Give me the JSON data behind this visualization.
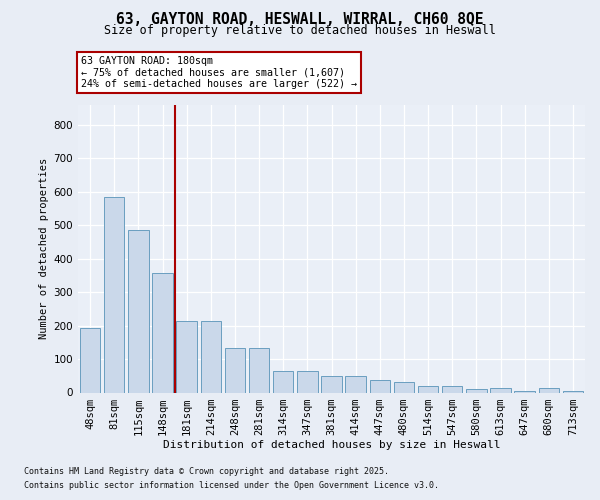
{
  "title_line1": "63, GAYTON ROAD, HESWALL, WIRRAL, CH60 8QE",
  "title_line2": "Size of property relative to detached houses in Heswall",
  "xlabel": "Distribution of detached houses by size in Heswall",
  "ylabel": "Number of detached properties",
  "categories": [
    "48sqm",
    "81sqm",
    "115sqm",
    "148sqm",
    "181sqm",
    "214sqm",
    "248sqm",
    "281sqm",
    "314sqm",
    "347sqm",
    "381sqm",
    "414sqm",
    "447sqm",
    "480sqm",
    "514sqm",
    "547sqm",
    "580sqm",
    "613sqm",
    "647sqm",
    "680sqm",
    "713sqm"
  ],
  "values": [
    193,
    585,
    487,
    358,
    215,
    215,
    133,
    133,
    63,
    63,
    50,
    50,
    38,
    30,
    20,
    20,
    10,
    13,
    5,
    13,
    5
  ],
  "bar_color": "#cad8ea",
  "bar_edge_color": "#6a9ec0",
  "vline_color": "#aa0000",
  "annotation_text": "63 GAYTON ROAD: 180sqm\n← 75% of detached houses are smaller (1,607)\n24% of semi-detached houses are larger (522) →",
  "ylim": [
    0,
    860
  ],
  "yticks": [
    0,
    100,
    200,
    300,
    400,
    500,
    600,
    700,
    800
  ],
  "footer_line1": "Contains HM Land Registry data © Crown copyright and database right 2025.",
  "footer_line2": "Contains public sector information licensed under the Open Government Licence v3.0.",
  "fig_bg_color": "#e8edf5",
  "plot_bg_color": "#eaeff7",
  "grid_color": "#d0d8e8"
}
